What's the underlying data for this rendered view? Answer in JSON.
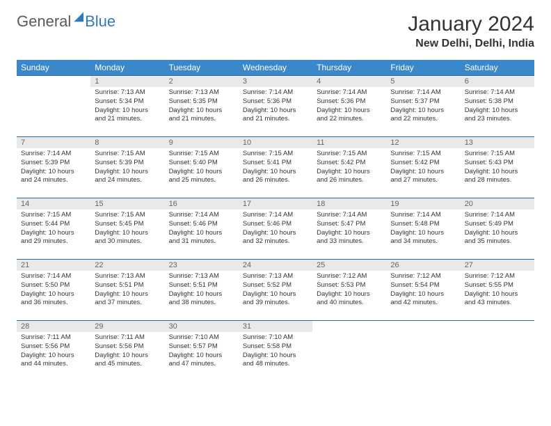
{
  "logo": {
    "general": "General",
    "blue": "Blue"
  },
  "title": "January 2024",
  "location": "New Delhi, Delhi, India",
  "columns": [
    "Sunday",
    "Monday",
    "Tuesday",
    "Wednesday",
    "Thursday",
    "Friday",
    "Saturday"
  ],
  "header_bg": "#3a87c9",
  "row_border": "#2d6da3",
  "daynum_bg": "#e9e9e9",
  "weeks": [
    [
      null,
      {
        "n": "1",
        "sr": "Sunrise: 7:13 AM",
        "ss": "Sunset: 5:34 PM",
        "dl": "Daylight: 10 hours and 21 minutes."
      },
      {
        "n": "2",
        "sr": "Sunrise: 7:13 AM",
        "ss": "Sunset: 5:35 PM",
        "dl": "Daylight: 10 hours and 21 minutes."
      },
      {
        "n": "3",
        "sr": "Sunrise: 7:14 AM",
        "ss": "Sunset: 5:36 PM",
        "dl": "Daylight: 10 hours and 21 minutes."
      },
      {
        "n": "4",
        "sr": "Sunrise: 7:14 AM",
        "ss": "Sunset: 5:36 PM",
        "dl": "Daylight: 10 hours and 22 minutes."
      },
      {
        "n": "5",
        "sr": "Sunrise: 7:14 AM",
        "ss": "Sunset: 5:37 PM",
        "dl": "Daylight: 10 hours and 22 minutes."
      },
      {
        "n": "6",
        "sr": "Sunrise: 7:14 AM",
        "ss": "Sunset: 5:38 PM",
        "dl": "Daylight: 10 hours and 23 minutes."
      }
    ],
    [
      {
        "n": "7",
        "sr": "Sunrise: 7:14 AM",
        "ss": "Sunset: 5:39 PM",
        "dl": "Daylight: 10 hours and 24 minutes."
      },
      {
        "n": "8",
        "sr": "Sunrise: 7:15 AM",
        "ss": "Sunset: 5:39 PM",
        "dl": "Daylight: 10 hours and 24 minutes."
      },
      {
        "n": "9",
        "sr": "Sunrise: 7:15 AM",
        "ss": "Sunset: 5:40 PM",
        "dl": "Daylight: 10 hours and 25 minutes."
      },
      {
        "n": "10",
        "sr": "Sunrise: 7:15 AM",
        "ss": "Sunset: 5:41 PM",
        "dl": "Daylight: 10 hours and 26 minutes."
      },
      {
        "n": "11",
        "sr": "Sunrise: 7:15 AM",
        "ss": "Sunset: 5:42 PM",
        "dl": "Daylight: 10 hours and 26 minutes."
      },
      {
        "n": "12",
        "sr": "Sunrise: 7:15 AM",
        "ss": "Sunset: 5:42 PM",
        "dl": "Daylight: 10 hours and 27 minutes."
      },
      {
        "n": "13",
        "sr": "Sunrise: 7:15 AM",
        "ss": "Sunset: 5:43 PM",
        "dl": "Daylight: 10 hours and 28 minutes."
      }
    ],
    [
      {
        "n": "14",
        "sr": "Sunrise: 7:15 AM",
        "ss": "Sunset: 5:44 PM",
        "dl": "Daylight: 10 hours and 29 minutes."
      },
      {
        "n": "15",
        "sr": "Sunrise: 7:15 AM",
        "ss": "Sunset: 5:45 PM",
        "dl": "Daylight: 10 hours and 30 minutes."
      },
      {
        "n": "16",
        "sr": "Sunrise: 7:14 AM",
        "ss": "Sunset: 5:46 PM",
        "dl": "Daylight: 10 hours and 31 minutes."
      },
      {
        "n": "17",
        "sr": "Sunrise: 7:14 AM",
        "ss": "Sunset: 5:46 PM",
        "dl": "Daylight: 10 hours and 32 minutes."
      },
      {
        "n": "18",
        "sr": "Sunrise: 7:14 AM",
        "ss": "Sunset: 5:47 PM",
        "dl": "Daylight: 10 hours and 33 minutes."
      },
      {
        "n": "19",
        "sr": "Sunrise: 7:14 AM",
        "ss": "Sunset: 5:48 PM",
        "dl": "Daylight: 10 hours and 34 minutes."
      },
      {
        "n": "20",
        "sr": "Sunrise: 7:14 AM",
        "ss": "Sunset: 5:49 PM",
        "dl": "Daylight: 10 hours and 35 minutes."
      }
    ],
    [
      {
        "n": "21",
        "sr": "Sunrise: 7:14 AM",
        "ss": "Sunset: 5:50 PM",
        "dl": "Daylight: 10 hours and 36 minutes."
      },
      {
        "n": "22",
        "sr": "Sunrise: 7:13 AM",
        "ss": "Sunset: 5:51 PM",
        "dl": "Daylight: 10 hours and 37 minutes."
      },
      {
        "n": "23",
        "sr": "Sunrise: 7:13 AM",
        "ss": "Sunset: 5:51 PM",
        "dl": "Daylight: 10 hours and 38 minutes."
      },
      {
        "n": "24",
        "sr": "Sunrise: 7:13 AM",
        "ss": "Sunset: 5:52 PM",
        "dl": "Daylight: 10 hours and 39 minutes."
      },
      {
        "n": "25",
        "sr": "Sunrise: 7:12 AM",
        "ss": "Sunset: 5:53 PM",
        "dl": "Daylight: 10 hours and 40 minutes."
      },
      {
        "n": "26",
        "sr": "Sunrise: 7:12 AM",
        "ss": "Sunset: 5:54 PM",
        "dl": "Daylight: 10 hours and 42 minutes."
      },
      {
        "n": "27",
        "sr": "Sunrise: 7:12 AM",
        "ss": "Sunset: 5:55 PM",
        "dl": "Daylight: 10 hours and 43 minutes."
      }
    ],
    [
      {
        "n": "28",
        "sr": "Sunrise: 7:11 AM",
        "ss": "Sunset: 5:56 PM",
        "dl": "Daylight: 10 hours and 44 minutes."
      },
      {
        "n": "29",
        "sr": "Sunrise: 7:11 AM",
        "ss": "Sunset: 5:56 PM",
        "dl": "Daylight: 10 hours and 45 minutes."
      },
      {
        "n": "30",
        "sr": "Sunrise: 7:10 AM",
        "ss": "Sunset: 5:57 PM",
        "dl": "Daylight: 10 hours and 47 minutes."
      },
      {
        "n": "31",
        "sr": "Sunrise: 7:10 AM",
        "ss": "Sunset: 5:58 PM",
        "dl": "Daylight: 10 hours and 48 minutes."
      },
      null,
      null,
      null
    ]
  ]
}
